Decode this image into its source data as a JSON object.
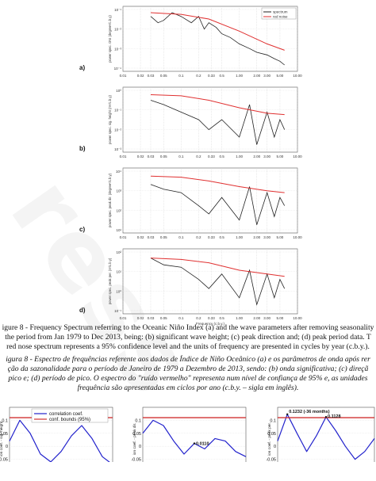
{
  "watermark": "ress",
  "chart_data": [
    {
      "type": "line",
      "panel_label": "a)",
      "ylabel": "power spec. ONI (degree²/c.b.y)",
      "xlabel": "",
      "xscale": "log",
      "xlim": [
        0.01,
        10
      ],
      "x_ticks": [
        "0.01",
        "0.02",
        "0.03",
        "0.05",
        "0.1",
        "0.2",
        "0.33",
        "0.5",
        "1.00",
        "2.00",
        "3.00",
        "5.00",
        "10.00"
      ],
      "y_ticks": [
        "10⁻¹",
        "10⁻²",
        "10⁻³",
        "10⁻⁴"
      ],
      "legend": [
        "spectrum",
        "red noise"
      ],
      "series": [
        {
          "name": "spectrum",
          "color": "#222222",
          "x": [
            0.03,
            0.04,
            0.05,
            0.07,
            0.1,
            0.15,
            0.2,
            0.25,
            0.3,
            0.4,
            0.5,
            0.7,
            1.0,
            1.5,
            2.0,
            3.0,
            4.0,
            5.0,
            6.0
          ],
          "y": [
            0.02,
            0.01,
            0.013,
            0.03,
            0.02,
            0.01,
            0.02,
            0.005,
            0.01,
            0.006,
            0.003,
            0.002,
            0.001,
            0.0006,
            0.0004,
            0.0003,
            0.0002,
            0.00015,
            0.0001
          ]
        },
        {
          "name": "red noise",
          "color": "#e03030",
          "x": [
            0.03,
            0.1,
            0.3,
            1.0,
            3.0,
            6.0
          ],
          "y": [
            0.03,
            0.025,
            0.015,
            0.004,
            0.001,
            0.0005
          ]
        }
      ]
    },
    {
      "type": "line",
      "panel_label": "b)",
      "ylabel": "power spec. sig. height (m²/c.b.y)",
      "xlabel": "",
      "xscale": "log",
      "xlim": [
        0.01,
        10
      ],
      "x_ticks": [
        "0.01",
        "0.02",
        "0.03",
        "0.05",
        "0.1",
        "0.2",
        "0.33",
        "0.5",
        "1.00",
        "2.00",
        "3.00",
        "5.00",
        "10.00"
      ],
      "y_ticks": [
        "10⁰",
        "10⁻¹",
        "10⁻²",
        "10⁻³"
      ],
      "series": [
        {
          "name": "spectrum",
          "color": "#222222",
          "x": [
            0.03,
            0.05,
            0.1,
            0.2,
            0.3,
            0.5,
            1.0,
            1.5,
            2.0,
            3.0,
            4.0,
            5.0,
            6.0
          ],
          "y": [
            0.3,
            0.2,
            0.1,
            0.05,
            0.02,
            0.05,
            0.01,
            0.2,
            0.005,
            0.1,
            0.01,
            0.05,
            0.02
          ]
        },
        {
          "name": "red noise",
          "color": "#e03030",
          "x": [
            0.03,
            0.1,
            0.3,
            1.0,
            3.0,
            6.0
          ],
          "y": [
            0.5,
            0.45,
            0.3,
            0.15,
            0.09,
            0.08
          ]
        }
      ]
    },
    {
      "type": "line",
      "panel_label": "c)",
      "ylabel": "power spec. peak dir. (degree²/c.b.y)",
      "xlabel": "",
      "xscale": "log",
      "xlim": [
        0.01,
        10
      ],
      "x_ticks": [
        "0.01",
        "0.02",
        "0.03",
        "0.05",
        "0.1",
        "0.2",
        "0.33",
        "0.5",
        "1.00",
        "2.00",
        "3.00",
        "5.00",
        "10.00"
      ],
      "y_ticks": [
        "10⁴",
        "10³",
        "10²",
        "10¹"
      ],
      "series": [
        {
          "name": "spectrum",
          "color": "#222222",
          "x": [
            0.03,
            0.05,
            0.1,
            0.2,
            0.3,
            0.5,
            1.0,
            1.5,
            2.0,
            3.0,
            4.0,
            5.0,
            6.0
          ],
          "y": [
            600,
            400,
            300,
            100,
            50,
            200,
            30,
            500,
            20,
            300,
            40,
            200,
            100
          ]
        },
        {
          "name": "red noise",
          "color": "#e03030",
          "x": [
            0.03,
            0.1,
            0.3,
            1.0,
            3.0,
            6.0
          ],
          "y": [
            1200,
            1100,
            800,
            500,
            350,
            300
          ]
        }
      ]
    },
    {
      "type": "line",
      "panel_label": "d)",
      "ylabel": "power spec. peak per. (s²/c.b.y)",
      "xlabel": "Frequency (c.b.y.)",
      "xscale": "log",
      "xlim": [
        0.01,
        10
      ],
      "x_ticks": [
        "0.01",
        "0.02",
        "0.03",
        "0.05",
        "0.1",
        "0.2",
        "0.33",
        "0.5",
        "1.00",
        "2.00",
        "3.00",
        "5.00",
        "10.00"
      ],
      "y_ticks": [
        "10²",
        "10¹",
        "10⁰",
        "10⁻¹"
      ],
      "series": [
        {
          "name": "spectrum",
          "color": "#222222",
          "x": [
            0.03,
            0.05,
            0.1,
            0.2,
            0.3,
            0.5,
            1.0,
            1.5,
            2.0,
            3.0,
            4.0,
            5.0,
            6.0
          ],
          "y": [
            10,
            6,
            5,
            2,
            1,
            3,
            0.5,
            4,
            0.3,
            3,
            0.5,
            2,
            1
          ]
        },
        {
          "name": "red noise",
          "color": "#e03030",
          "x": [
            0.03,
            0.1,
            0.3,
            1.0,
            3.0,
            6.0
          ],
          "y": [
            10,
            9,
            7,
            4,
            3,
            2.5
          ]
        }
      ]
    },
    {
      "type": "line",
      "ylabel": "ion coef. - sig. height",
      "xlabel": "",
      "ylim": [
        -0.1,
        0.15
      ],
      "y_ticks": [
        "0.1",
        "0.05",
        "0",
        "-0.05"
      ],
      "legend": [
        "correlation coef.",
        "conf. bounds (95%)"
      ],
      "series": [
        {
          "name": "correlation coef.",
          "color": "#2222cc",
          "x": [
            0,
            1,
            2,
            3,
            4,
            5,
            6,
            7,
            8,
            9,
            10
          ],
          "y": [
            0.02,
            0.1,
            0.05,
            -0.03,
            -0.06,
            -0.02,
            0.04,
            0.08,
            0.03,
            -0.04,
            -0.07
          ]
        },
        {
          "name": "conf. bounds (95%)",
          "color": "#d03030",
          "x": [
            0,
            10
          ],
          "y": [
            0.11,
            0.11
          ]
        }
      ]
    },
    {
      "type": "line",
      "ylabel": "ion coef. - peak dir.",
      "xlabel": "",
      "ylim": [
        -0.1,
        0.15
      ],
      "y_ticks": [
        "0.1",
        "0.05",
        "0",
        "-0.05"
      ],
      "annotations": [
        "0.0110"
      ],
      "series": [
        {
          "name": "correlation coef.",
          "color": "#2222cc",
          "x": [
            0,
            1,
            2,
            3,
            4,
            5,
            6,
            7,
            8,
            9,
            10
          ],
          "y": [
            0.05,
            0.1,
            0.08,
            0.02,
            -0.03,
            0.011,
            -0.01,
            0.03,
            0.02,
            -0.02,
            -0.04
          ]
        },
        {
          "name": "conf. bounds (95%)",
          "color": "#d03030",
          "x": [
            0,
            10
          ],
          "y": [
            0.11,
            0.11
          ]
        }
      ]
    },
    {
      "type": "line",
      "ylabel": "ion coef. - peak per.",
      "xlabel": "",
      "ylim": [
        -0.1,
        0.15
      ],
      "y_ticks": [
        "0.1",
        "0.05",
        "0",
        "-0.05"
      ],
      "annotations": [
        "0.1232 (-36 months)",
        "0.1128"
      ],
      "series": [
        {
          "name": "correlation coef.",
          "color": "#2222cc",
          "x": [
            0,
            1,
            2,
            3,
            4,
            5,
            6,
            7,
            8,
            9,
            10
          ],
          "y": [
            0.02,
            0.1232,
            0.05,
            -0.02,
            0.04,
            0.1128,
            0.06,
            0.0,
            -0.05,
            -0.02,
            0.03
          ]
        },
        {
          "name": "conf. bounds (95%)",
          "color": "#d03030",
          "x": [
            0,
            10
          ],
          "y": [
            0.11,
            0.11
          ]
        }
      ]
    }
  ],
  "captions": {
    "en_1": "igure 8 - Frequency Spectrum referring to the Oceanic Niño Index (a) and the wave parameters after removing seasonality",
    "en_2": "the period from Jan 1979 to Dec 2013, being: (b) significant wave height; (c) peak direction and; (d) peak period data. T",
    "en_3": "red nose spectrum represents a 95% confidence level and the units of frequency are presented in cycles by year (c.b.y.).",
    "pt_1": "igura 8 - Espectro de frequências referente aos dados de Índice de Niño Oceânico (a) e os parâmetros de onda após rer",
    "pt_2": "ção da sazonalidade para o período de Janeiro de 1979 a Dezembro de 2013, sendo: (b) onda significativa; (c) direçã",
    "pt_3": "pico e; (d) período de pico. O espectro do \"ruído vermelho\" representa num nível de confiança de 95% e, as unidades",
    "pt_4": "frequência são apresentadas em ciclos por ano (c.b.y. – sigla em inglês)."
  }
}
